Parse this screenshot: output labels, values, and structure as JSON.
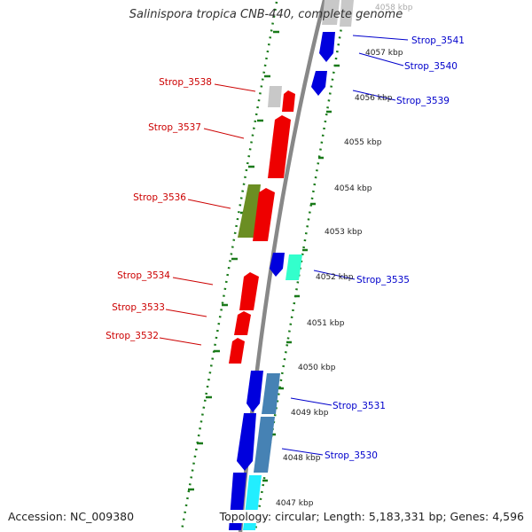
{
  "title": "Salinispora tropica CNB-440, complete genome",
  "accession": "Accession: NC_009380",
  "summary": "Topology: circular; Length: 5,183,331 bp; Genes: 4,596",
  "colors": {
    "backbone": "#888888",
    "forward_gene": "#ee0000",
    "reverse_gene": "#0000dd",
    "reverse_label": "#0000cc",
    "forward_label": "#cc0000",
    "tick": "#1a7a1a",
    "grey_gene": "#c8c8c8",
    "olive_gene": "#6b8e23",
    "cyan_gene": "#33ffcc",
    "steel_gene": "#4682b4",
    "aqua_gene": "#22eeff"
  },
  "scale_labels": [
    "4058 kbp",
    "4057 kbp",
    "4056 kbp",
    "4055 kbp",
    "4054 kbp",
    "4053 kbp",
    "4052 kbp",
    "4051 kbp",
    "4050 kbp",
    "4049 kbp",
    "4048 kbp",
    "4047 kbp"
  ],
  "reverse_labels": [
    "Strop_3541",
    "Strop_3540",
    "Strop_3539",
    "Strop_3535",
    "Strop_3531",
    "Strop_3530"
  ],
  "forward_labels": [
    "Strop_3538",
    "Strop_3537",
    "Strop_3536",
    "Strop_3534",
    "Strop_3533",
    "Strop_3532"
  ]
}
